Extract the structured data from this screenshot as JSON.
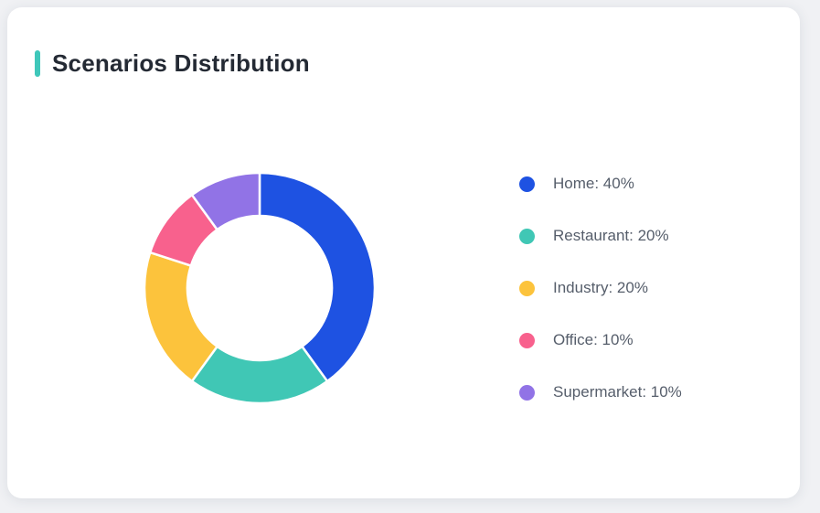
{
  "page": {
    "background_color": "#F0F1F4"
  },
  "card": {
    "title": "Scenarios Distribution",
    "accent_color": "#3FC7BA",
    "background_color": "#FFFFFF",
    "title_color": "#242A34"
  },
  "chart_data": {
    "type": "pie",
    "subtype": "donut",
    "title": "Scenarios Distribution",
    "categories": [
      "Home",
      "Restaurant",
      "Industry",
      "Office",
      "Supermarket"
    ],
    "values": [
      40,
      20,
      20,
      10,
      10
    ],
    "unit": "%",
    "colors": [
      "#1E52E2",
      "#40C7B5",
      "#FCC33C",
      "#F8618D",
      "#9173E6"
    ],
    "legend_labels": [
      "Home: 40%",
      "Restaurant: 20%",
      "Industry: 20%",
      "Office: 10%",
      "Supermarket: 10%"
    ],
    "legend_position": "right",
    "start_angle_deg": 0,
    "direction": "clockwise",
    "inner_radius_ratio": 0.63,
    "slice_gap_color": "#FFFFFF"
  }
}
